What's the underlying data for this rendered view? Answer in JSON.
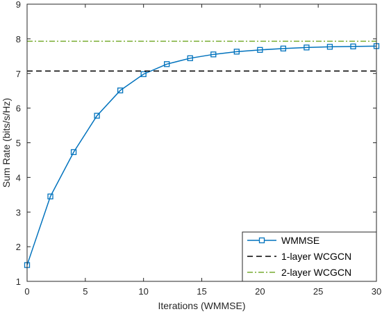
{
  "chart_data": {
    "type": "line",
    "xlabel": "Iterations (WMMSE)",
    "ylabel": "Sum Rate (bits/s/Hz)",
    "xlim": [
      0,
      30
    ],
    "ylim": [
      1,
      9
    ],
    "xticks": [
      0,
      5,
      10,
      15,
      20,
      25,
      30
    ],
    "yticks": [
      1,
      2,
      3,
      4,
      5,
      6,
      7,
      8,
      9
    ],
    "grid": false,
    "legend_position": "bottom-right",
    "series": [
      {
        "name": "WMMSE",
        "style": "solid-square-markers",
        "color": "#0072BD",
        "x": [
          0,
          2,
          4,
          6,
          8,
          10,
          12,
          14,
          16,
          18,
          20,
          22,
          24,
          26,
          28,
          30
        ],
        "y": [
          1.47,
          3.45,
          4.73,
          5.78,
          6.51,
          6.98,
          7.27,
          7.44,
          7.55,
          7.63,
          7.68,
          7.72,
          7.75,
          7.77,
          7.78,
          7.79
        ]
      },
      {
        "name": "1-layer WCGCN",
        "style": "dashed",
        "color": "#000000",
        "x": [
          0,
          30
        ],
        "y": [
          7.07,
          7.07
        ]
      },
      {
        "name": "2-layer WCGCN",
        "style": "dashdot",
        "color": "#77AC30",
        "x": [
          0,
          30
        ],
        "y": [
          7.93,
          7.93
        ]
      }
    ]
  }
}
